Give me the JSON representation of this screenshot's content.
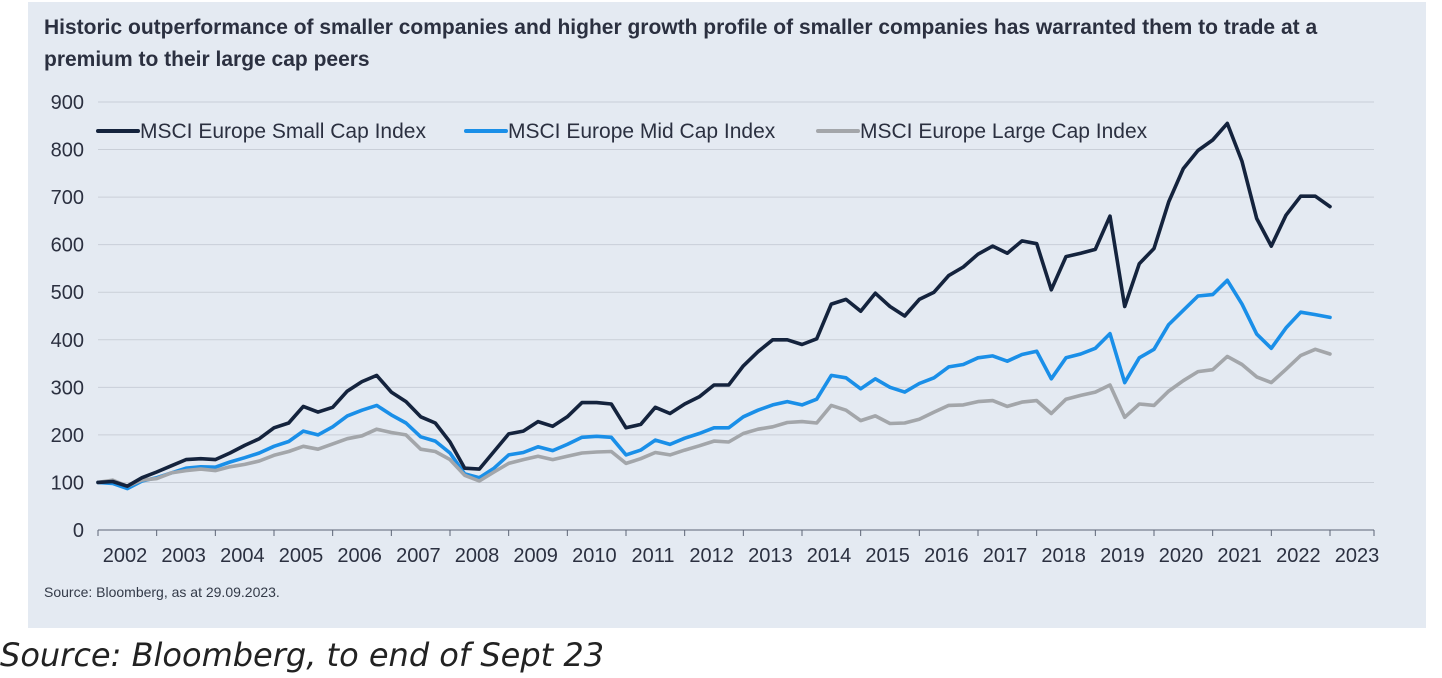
{
  "title": "Historic outperformance of smaller companies and higher growth profile of smaller companies has warranted them to trade at a premium to their large cap peers",
  "source_note": "Source: Bloomberg, as at 29.09.2023.",
  "caption": "Source: Bloomberg, to end of Sept 23",
  "colors": {
    "panel_bg": "#e4eaf2",
    "small_cap": "#14233d",
    "mid_cap": "#1a8fe8",
    "large_cap": "#a3a6aa",
    "grid": "#c9cfd8"
  },
  "chart_data": {
    "type": "line",
    "title": "Historic outperformance of smaller companies and higher growth profile of smaller companies has warranted them to trade at a premium to their large cap peers",
    "xlabel": "",
    "ylabel": "",
    "xlim": [
      2002.0,
      2023.75
    ],
    "ylim": [
      0,
      900
    ],
    "yticks": [
      0,
      100,
      200,
      300,
      400,
      500,
      600,
      700,
      800,
      900
    ],
    "xticks": [
      "2002",
      "2003",
      "2004",
      "2005",
      "2006",
      "2007",
      "2008",
      "2009",
      "2010",
      "2011",
      "2012",
      "2013",
      "2014",
      "2015",
      "2016",
      "2017",
      "2018",
      "2019",
      "2020",
      "2021",
      "2022",
      "2023"
    ],
    "grid": true,
    "legend_position": "top-left",
    "x_start": 2002.0,
    "x_step": 0.25,
    "series": [
      {
        "name": "MSCI Europe Small Cap Index",
        "color_key": "small_cap",
        "values": [
          100,
          102,
          92,
          110,
          122,
          135,
          148,
          150,
          148,
          162,
          178,
          192,
          215,
          225,
          260,
          248,
          258,
          292,
          312,
          325,
          290,
          270,
          238,
          225,
          185,
          130,
          128,
          165,
          202,
          208,
          228,
          218,
          238,
          268,
          268,
          265,
          215,
          222,
          258,
          245,
          265,
          280,
          305,
          305,
          345,
          375,
          400,
          400,
          390,
          402,
          475,
          485,
          460,
          498,
          470,
          450,
          485,
          500,
          535,
          553,
          580,
          597,
          582,
          608,
          602,
          505,
          575,
          582,
          590,
          660,
          470,
          560,
          592,
          690,
          760,
          798,
          820,
          855,
          775,
          655,
          597,
          662,
          702,
          702,
          680
        ]
      },
      {
        "name": "MSCI Europe Mid Cap Index",
        "color_key": "mid_cap",
        "values": [
          100,
          98,
          87,
          103,
          110,
          120,
          130,
          133,
          132,
          143,
          152,
          162,
          176,
          186,
          208,
          200,
          217,
          240,
          252,
          262,
          242,
          225,
          196,
          187,
          162,
          118,
          110,
          130,
          158,
          163,
          175,
          167,
          180,
          195,
          197,
          195,
          158,
          168,
          189,
          180,
          193,
          203,
          215,
          215,
          238,
          252,
          263,
          270,
          263,
          275,
          325,
          320,
          297,
          318,
          300,
          290,
          308,
          320,
          343,
          348,
          362,
          366,
          355,
          369,
          376,
          318,
          362,
          370,
          382,
          413,
          310,
          362,
          380,
          432,
          462,
          492,
          495,
          525,
          475,
          412,
          382,
          425,
          458,
          453,
          447
        ]
      },
      {
        "name": "MSCI Europe Large Cap Index",
        "color_key": "large_cap",
        "values": [
          100,
          105,
          92,
          105,
          108,
          120,
          125,
          128,
          125,
          133,
          138,
          145,
          157,
          165,
          176,
          170,
          181,
          192,
          198,
          212,
          205,
          200,
          170,
          165,
          148,
          115,
          103,
          122,
          140,
          148,
          155,
          148,
          155,
          162,
          164,
          165,
          140,
          150,
          163,
          158,
          168,
          177,
          187,
          185,
          203,
          212,
          217,
          226,
          228,
          225,
          262,
          252,
          230,
          240,
          224,
          225,
          233,
          248,
          262,
          263,
          270,
          272,
          260,
          269,
          272,
          245,
          275,
          283,
          290,
          305,
          237,
          265,
          262,
          292,
          314,
          333,
          337,
          365,
          348,
          322,
          310,
          338,
          367,
          380,
          370
        ]
      }
    ]
  }
}
